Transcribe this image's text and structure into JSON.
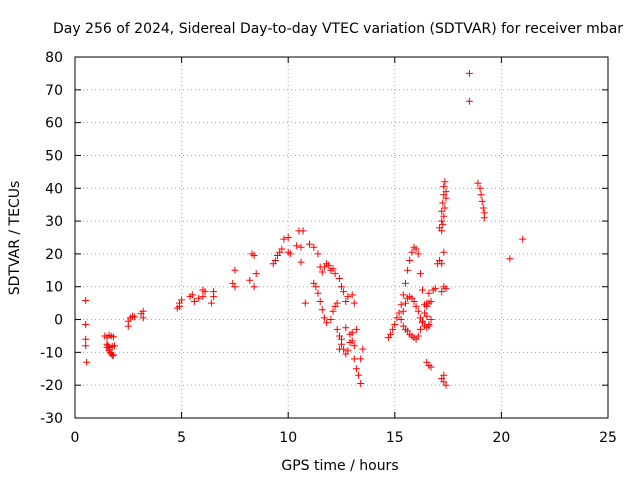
{
  "chart_data": {
    "type": "scatter",
    "title": "Day 256 of 2024, Sidereal Day-to-day VTEC variation (SDTVAR) for receiver mbar",
    "xlabel": "GPS time / hours",
    "ylabel": "SDTVAR / TECUs",
    "xlim": [
      0,
      25
    ],
    "ylim": [
      -30,
      80
    ],
    "xticks": [
      "0",
      "5",
      "10",
      "15",
      "20",
      "25"
    ],
    "yticks": [
      "-30",
      "-20",
      "-10",
      "0",
      "10",
      "20",
      "30",
      "40",
      "50",
      "60",
      "70",
      "80"
    ],
    "grid": true,
    "marker": "plus",
    "color": "#ff0000",
    "series": [
      {
        "x": [
          0.5,
          0.5,
          0.5,
          0.5,
          0.55,
          1.4,
          1.5,
          1.5,
          1.55,
          1.6,
          1.6,
          1.65,
          1.7,
          1.75,
          1.8,
          1.6,
          1.7,
          1.8,
          1.5,
          1.6,
          1.75,
          1.85,
          2.5,
          2.5,
          2.6,
          2.7,
          2.8,
          3.1,
          3.2,
          3.2,
          4.8,
          4.9,
          4.9,
          5.0,
          5.4,
          5.5,
          5.6,
          5.8,
          6.0,
          6.0,
          6.1,
          6.4,
          6.5,
          6.5,
          7.4,
          7.5,
          7.5,
          8.2,
          8.3,
          8.4,
          8.5,
          8.4,
          9.3,
          9.4,
          9.5,
          9.6,
          9.7,
          9.8,
          10.0,
          10.0,
          10.1,
          10.4,
          10.5,
          10.6,
          10.7,
          10.6,
          10.8,
          11.0,
          11.2,
          11.4,
          11.5,
          11.6,
          11.7,
          11.8,
          11.9,
          12.0,
          12.1,
          12.2,
          12.4,
          12.5,
          12.6,
          12.7,
          12.8,
          13.0,
          13.1,
          13.2,
          11.2,
          11.3,
          11.4,
          11.5,
          11.6,
          11.7,
          11.8,
          12.0,
          12.1,
          12.2,
          12.3,
          12.3,
          12.4,
          12.5,
          12.6,
          12.7,
          12.8,
          12.9,
          13.0,
          13.1,
          13.2,
          13.3,
          13.4,
          13.5,
          13.4,
          13.1,
          13.0,
          12.9,
          12.7,
          12.5,
          12.4,
          14.7,
          14.8,
          14.9,
          15.0,
          15.1,
          15.2,
          15.3,
          15.4,
          15.5,
          15.6,
          15.7,
          15.8,
          15.9,
          16.0,
          16.1,
          16.2,
          16.3,
          16.4,
          16.5,
          16.6,
          15.4,
          15.5,
          15.6,
          15.7,
          15.8,
          15.9,
          16.0,
          16.1,
          16.2,
          16.3,
          16.4,
          16.5,
          16.6,
          15.3,
          15.4,
          15.5,
          15.6,
          15.7,
          15.8,
          15.9,
          16.0,
          16.1,
          16.2,
          16.3,
          16.4,
          16.5,
          16.6,
          16.7,
          16.5,
          16.6,
          16.7,
          16.8,
          16.9,
          17.0,
          17.1,
          17.2,
          16.5,
          16.6,
          16.7,
          17.1,
          17.2,
          17.2,
          17.25,
          17.3,
          17.3,
          17.35,
          17.4,
          17.3,
          17.2,
          17.3,
          17.4,
          17.3,
          17.2,
          17.3,
          17.4,
          17.2,
          17.25,
          17.3,
          17.35,
          17.4,
          18.5,
          18.5,
          18.9,
          19.0,
          19.05,
          19.1,
          19.15,
          19.2,
          19.2,
          20.4,
          21.0
        ],
        "y": [
          5.8,
          -1.5,
          -6.0,
          -8.0,
          -13.0,
          -5.0,
          -5.5,
          -7.5,
          -8.0,
          -8.5,
          -9.5,
          -10.0,
          -10.5,
          -11.0,
          -10.8,
          -4.8,
          -5.0,
          -5.3,
          -8.5,
          -9.0,
          -8.2,
          -8.0,
          -2.0,
          -0.5,
          0.5,
          1.0,
          0.8,
          1.8,
          2.5,
          0.5,
          3.5,
          5.0,
          4.0,
          6.0,
          7.0,
          7.5,
          5.5,
          6.5,
          7.0,
          9.0,
          8.5,
          5.0,
          7.0,
          8.5,
          11.0,
          15.0,
          10.0,
          12.0,
          20.0,
          19.5,
          14.0,
          10.0,
          17.0,
          18.0,
          19.5,
          20.5,
          21.5,
          24.5,
          25.0,
          20.5,
          20.0,
          22.5,
          27.0,
          22.0,
          27.0,
          17.5,
          5.0,
          23.0,
          22.0,
          20.0,
          16.0,
          14.5,
          16.0,
          17.0,
          16.5,
          15.0,
          15.5,
          14.0,
          12.5,
          10.0,
          8.5,
          5.5,
          7.0,
          7.5,
          5.0,
          -3.0,
          11.0,
          10.0,
          8.0,
          5.5,
          3.0,
          0.5,
          -1.0,
          0.0,
          2.5,
          4.0,
          5.0,
          -3.0,
          -5.0,
          -7.5,
          -9.0,
          -10.5,
          -9.5,
          -7.0,
          -4.0,
          -12.0,
          -15.0,
          -17.0,
          -19.5,
          -9.0,
          -12.0,
          -8.0,
          -6.5,
          -4.5,
          -2.5,
          -6.0,
          -9.0,
          -5.5,
          -4.5,
          -3.0,
          -1.5,
          0.5,
          2.0,
          4.5,
          7.5,
          11.0,
          15.0,
          18.0,
          20.5,
          22.0,
          21.5,
          20.0,
          14.0,
          9.0,
          4.5,
          1.0,
          -2.0,
          -2.0,
          -3.0,
          -3.5,
          -4.5,
          -5.0,
          -5.5,
          -6.0,
          -5.0,
          -3.0,
          -0.5,
          2.0,
          5.0,
          8.0,
          0.0,
          2.5,
          5.0,
          6.5,
          7.0,
          6.5,
          5.5,
          4.0,
          2.5,
          0.5,
          -1.0,
          -2.0,
          -2.5,
          -1.5,
          0.0,
          -13.0,
          -14.0,
          -14.5,
          9.0,
          9.5,
          17.0,
          18.0,
          8.5,
          4.0,
          5.0,
          5.5,
          28.0,
          30.0,
          33.0,
          35.5,
          38.0,
          40.5,
          42.0,
          39.0,
          20.5,
          17.0,
          10.0,
          9.5,
          -17.0,
          -18.0,
          -19.0,
          -20.0,
          27.0,
          29.0,
          31.5,
          34.0,
          37.0,
          75.0,
          66.5,
          41.5,
          40.0,
          38.0,
          36.0,
          34.0,
          32.5,
          31.0,
          18.5,
          24.5
        ]
      }
    ]
  }
}
